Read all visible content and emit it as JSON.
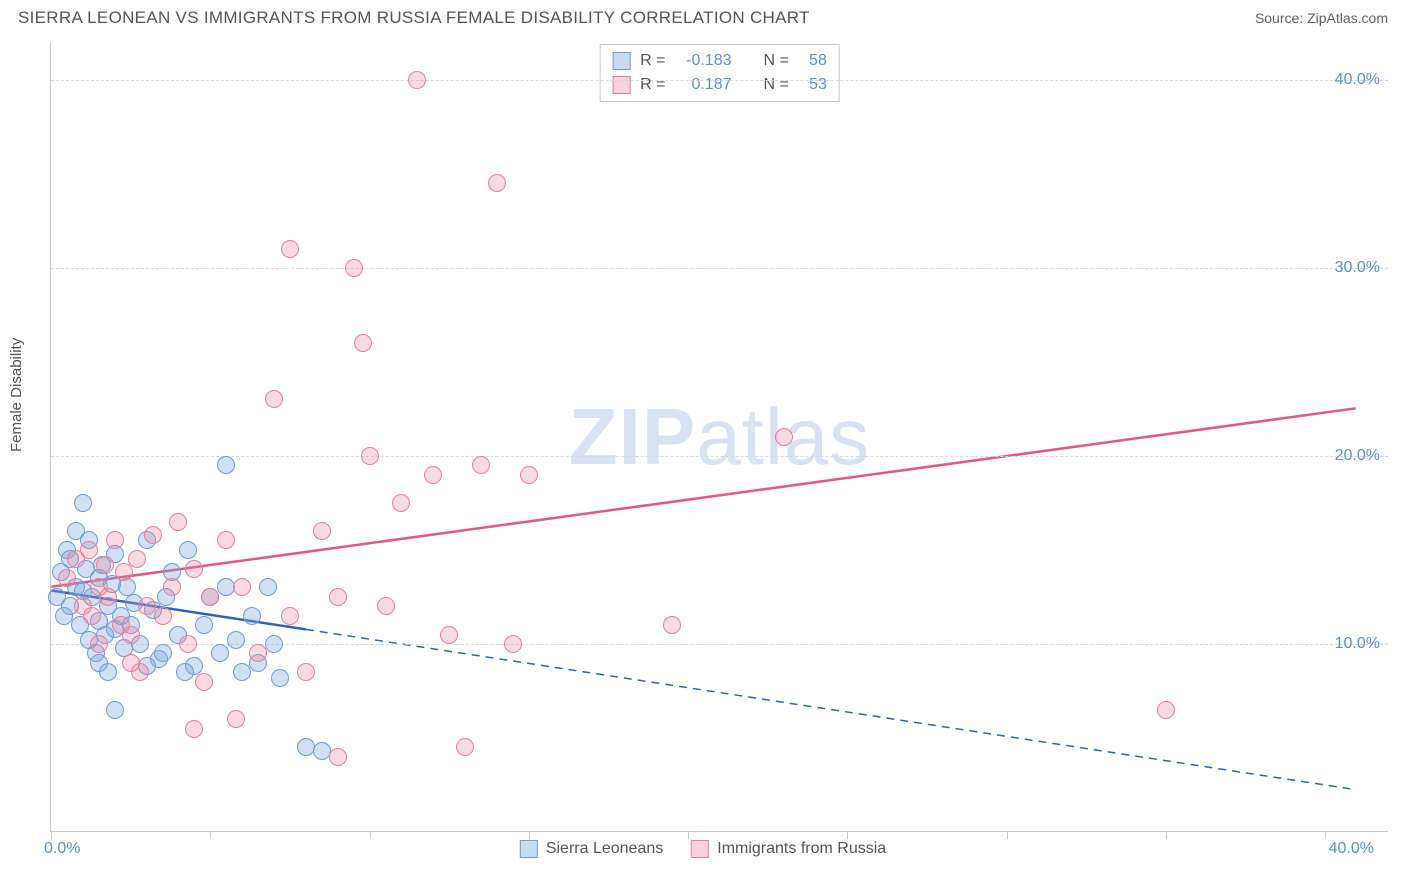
{
  "header": {
    "title": "SIERRA LEONEAN VS IMMIGRANTS FROM RUSSIA FEMALE DISABILITY CORRELATION CHART",
    "source": "Source: ZipAtlas.com"
  },
  "chart": {
    "type": "scatter",
    "y_axis_label": "Female Disability",
    "watermark_bold": "ZIP",
    "watermark_rest": "atlas",
    "background_color": "#ffffff",
    "grid_color": "#d8d8d8",
    "axis_color": "#c8c8c8",
    "tick_label_color": "#5b8dd6",
    "text_color": "#545454",
    "title_fontsize": 17,
    "tick_fontsize": 16,
    "legend_fontsize": 16,
    "xlim": [
      0,
      42
    ],
    "ylim": [
      0,
      42
    ],
    "y_ticks": [
      10,
      20,
      30,
      40
    ],
    "y_tick_labels": [
      "10.0%",
      "20.0%",
      "30.0%",
      "40.0%"
    ],
    "x_ticks": [
      0,
      5,
      10,
      15,
      20,
      25,
      30,
      35,
      40
    ],
    "x_tick_labels_shown": {
      "0": "0.0%",
      "40": "40.0%"
    },
    "series": [
      {
        "name": "Sierra Leoneans",
        "color_fill": "rgba(125,166,220,0.35)",
        "color_stroke": "#6d9cd6",
        "marker_size": 18,
        "R": "-0.183",
        "N": "58",
        "trend": {
          "x1": 0,
          "y1": 12.8,
          "x2": 41,
          "y2": 2.2,
          "solid_until_x": 8,
          "color": "#2f63b8",
          "width": 2.5
        },
        "points": [
          [
            0.2,
            12.5
          ],
          [
            0.3,
            13.8
          ],
          [
            0.4,
            11.5
          ],
          [
            0.5,
            15.0
          ],
          [
            0.6,
            12.0
          ],
          [
            0.6,
            14.5
          ],
          [
            0.8,
            13.0
          ],
          [
            0.8,
            16.0
          ],
          [
            0.9,
            11.0
          ],
          [
            1.0,
            12.8
          ],
          [
            1.0,
            17.5
          ],
          [
            1.1,
            14.0
          ],
          [
            1.2,
            10.2
          ],
          [
            1.2,
            15.5
          ],
          [
            1.3,
            12.5
          ],
          [
            1.4,
            9.5
          ],
          [
            1.5,
            13.5
          ],
          [
            1.5,
            11.2
          ],
          [
            1.6,
            14.2
          ],
          [
            1.7,
            10.5
          ],
          [
            1.8,
            12.0
          ],
          [
            1.9,
            13.2
          ],
          [
            2.0,
            10.8
          ],
          [
            2.0,
            14.8
          ],
          [
            2.2,
            11.5
          ],
          [
            2.3,
            9.8
          ],
          [
            2.4,
            13.0
          ],
          [
            2.5,
            11.0
          ],
          [
            2.6,
            12.2
          ],
          [
            2.8,
            10.0
          ],
          [
            3.0,
            15.5
          ],
          [
            3.2,
            11.8
          ],
          [
            3.4,
            9.2
          ],
          [
            3.6,
            12.5
          ],
          [
            3.8,
            13.8
          ],
          [
            4.0,
            10.5
          ],
          [
            4.3,
            15.0
          ],
          [
            4.5,
            8.8
          ],
          [
            4.8,
            11.0
          ],
          [
            5.0,
            12.5
          ],
          [
            5.3,
            9.5
          ],
          [
            5.5,
            19.5
          ],
          [
            5.5,
            13.0
          ],
          [
            5.8,
            10.2
          ],
          [
            6.0,
            8.5
          ],
          [
            6.3,
            11.5
          ],
          [
            6.5,
            9.0
          ],
          [
            6.8,
            13.0
          ],
          [
            7.0,
            10.0
          ],
          [
            7.2,
            8.2
          ],
          [
            2.0,
            6.5
          ],
          [
            1.5,
            9.0
          ],
          [
            1.8,
            8.5
          ],
          [
            8.0,
            4.5
          ],
          [
            8.5,
            4.3
          ],
          [
            3.0,
            8.8
          ],
          [
            4.2,
            8.5
          ],
          [
            3.5,
            9.5
          ]
        ]
      },
      {
        "name": "Immigrants from Russia",
        "color_fill": "rgba(235,130,160,0.3)",
        "color_stroke": "#e2809e",
        "marker_size": 18,
        "R": "0.187",
        "N": "53",
        "trend": {
          "x1": 0,
          "y1": 13.0,
          "x2": 41,
          "y2": 22.5,
          "solid_until_x": 41,
          "color": "#e05a86",
          "width": 2.5
        },
        "points": [
          [
            0.5,
            13.5
          ],
          [
            0.8,
            14.5
          ],
          [
            1.0,
            12.0
          ],
          [
            1.2,
            15.0
          ],
          [
            1.3,
            11.5
          ],
          [
            1.5,
            13.0
          ],
          [
            1.7,
            14.2
          ],
          [
            1.8,
            12.5
          ],
          [
            2.0,
            15.5
          ],
          [
            2.2,
            11.0
          ],
          [
            2.3,
            13.8
          ],
          [
            2.5,
            10.5
          ],
          [
            2.7,
            14.5
          ],
          [
            2.8,
            8.5
          ],
          [
            3.0,
            12.0
          ],
          [
            3.2,
            15.8
          ],
          [
            3.5,
            11.5
          ],
          [
            3.8,
            13.0
          ],
          [
            4.0,
            16.5
          ],
          [
            4.3,
            10.0
          ],
          [
            4.5,
            14.0
          ],
          [
            4.8,
            8.0
          ],
          [
            5.0,
            12.5
          ],
          [
            5.5,
            15.5
          ],
          [
            5.8,
            6.0
          ],
          [
            6.0,
            13.0
          ],
          [
            6.5,
            9.5
          ],
          [
            7.0,
            23.0
          ],
          [
            7.5,
            31.0
          ],
          [
            7.5,
            11.5
          ],
          [
            8.0,
            8.5
          ],
          [
            8.5,
            16.0
          ],
          [
            9.0,
            12.5
          ],
          [
            9.5,
            30.0
          ],
          [
            9.8,
            26.0
          ],
          [
            10.0,
            20.0
          ],
          [
            10.5,
            12.0
          ],
          [
            11.0,
            17.5
          ],
          [
            11.5,
            40.0
          ],
          [
            12.0,
            19.0
          ],
          [
            12.5,
            10.5
          ],
          [
            13.0,
            4.5
          ],
          [
            13.5,
            19.5
          ],
          [
            14.0,
            34.5
          ],
          [
            14.5,
            10.0
          ],
          [
            15.0,
            19.0
          ],
          [
            19.5,
            11.0
          ],
          [
            23.0,
            21.0
          ],
          [
            35.0,
            6.5
          ],
          [
            9.0,
            4.0
          ],
          [
            4.5,
            5.5
          ],
          [
            1.5,
            10.0
          ],
          [
            2.5,
            9.0
          ]
        ]
      }
    ],
    "stats_legend": {
      "rows": [
        {
          "swatch": "blue",
          "r_label": "R =",
          "r_val": "-0.183",
          "n_label": "N =",
          "n_val": "58"
        },
        {
          "swatch": "pink",
          "r_label": "R =",
          "r_val": "0.187",
          "n_label": "N =",
          "n_val": "53"
        }
      ]
    },
    "bottom_legend": [
      {
        "swatch": "blue",
        "label": "Sierra Leoneans"
      },
      {
        "swatch": "pink",
        "label": "Immigrants from Russia"
      }
    ]
  }
}
